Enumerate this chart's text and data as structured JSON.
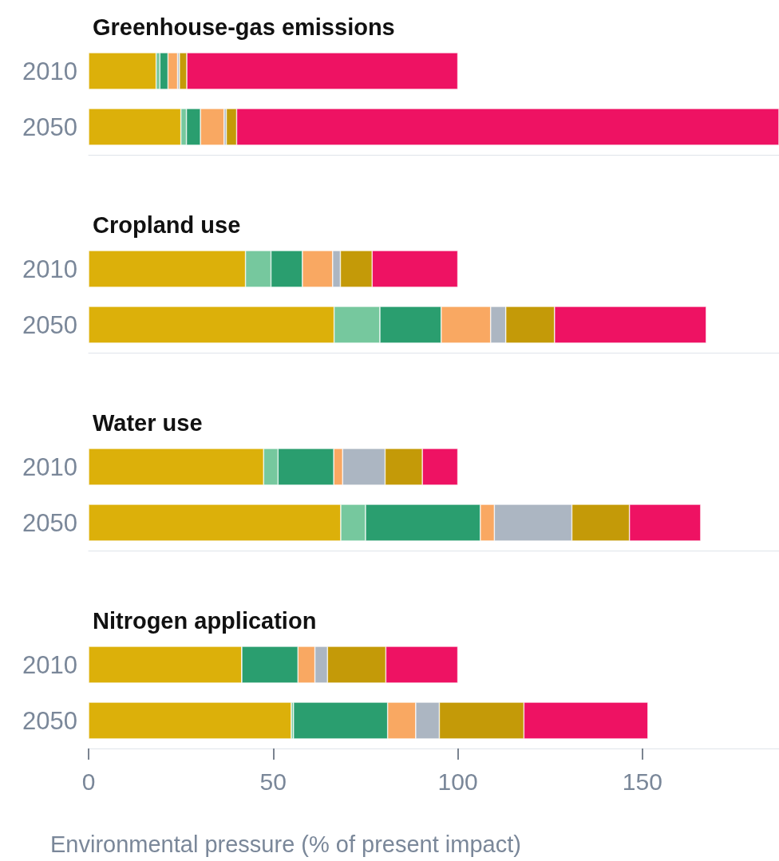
{
  "chart_data": [
    {
      "type": "bar",
      "title": "Greenhouse-gas emissions",
      "orientation": "horizontal",
      "stacked": true,
      "categories": [
        "2010",
        "2050"
      ],
      "xlim": [
        0,
        187
      ],
      "xticks": [
        0,
        50,
        100,
        150
      ],
      "tick_labels": "y",
      "series": [
        {
          "color": "#dcb00a",
          "values": [
            18.3,
            25
          ]
        },
        {
          "color": "#76c89e",
          "values": [
            1,
            1.5
          ]
        },
        {
          "color": "#2a9e6f",
          "values": [
            2.2,
            3.8
          ]
        },
        {
          "color": "#f9a862",
          "values": [
            2.6,
            6.4
          ]
        },
        {
          "color": "#acb6c2",
          "values": [
            0.5,
            0.6
          ]
        },
        {
          "color": "#c49a08",
          "values": [
            2,
            2.8
          ]
        },
        {
          "color": "#ee1263",
          "values": [
            73.4,
            146.9
          ]
        }
      ]
    },
    {
      "type": "bar",
      "title": "Cropland use",
      "orientation": "horizontal",
      "stacked": true,
      "categories": [
        "2010",
        "2050"
      ],
      "xlim": [
        0,
        187
      ],
      "xticks": [
        0,
        50,
        100,
        150
      ],
      "tick_labels": "y",
      "series": [
        {
          "color": "#dcb00a",
          "values": [
            42.5,
            66.5
          ]
        },
        {
          "color": "#76c89e",
          "values": [
            6.9,
            12.4
          ]
        },
        {
          "color": "#2a9e6f",
          "values": [
            8.5,
            16.6
          ]
        },
        {
          "color": "#f9a862",
          "values": [
            8.2,
            13.4
          ]
        },
        {
          "color": "#acb6c2",
          "values": [
            2.1,
            4.1
          ]
        },
        {
          "color": "#c49a08",
          "values": [
            8.6,
            13.2
          ]
        },
        {
          "color": "#ee1263",
          "values": [
            23.2,
            41.1
          ]
        }
      ]
    },
    {
      "type": "bar",
      "title": "Water use",
      "orientation": "horizontal",
      "stacked": true,
      "categories": [
        "2010",
        "2050"
      ],
      "xlim": [
        0,
        187
      ],
      "xticks": [
        0,
        50,
        100,
        150
      ],
      "tick_labels": "y",
      "series": [
        {
          "color": "#dcb00a",
          "values": [
            47.4,
            68.3
          ]
        },
        {
          "color": "#76c89e",
          "values": [
            3.9,
            6.7
          ]
        },
        {
          "color": "#2a9e6f",
          "values": [
            15.1,
            31.1
          ]
        },
        {
          "color": "#f9a862",
          "values": [
            2.4,
            3.8
          ]
        },
        {
          "color": "#acb6c2",
          "values": [
            11.5,
            21
          ]
        },
        {
          "color": "#c49a08",
          "values": [
            10.1,
            15.6
          ]
        },
        {
          "color": "#ee1263",
          "values": [
            9.6,
            19.3
          ]
        }
      ]
    },
    {
      "type": "bar",
      "title": "Nitrogen application",
      "xlabel": "Environmental pressure (% of present impact)",
      "orientation": "horizontal",
      "stacked": true,
      "categories": [
        "2010",
        "2050"
      ],
      "xlim": [
        0,
        187
      ],
      "xticks": [
        0,
        50,
        100,
        150
      ],
      "series": [
        {
          "color": "#dcb00a",
          "values": [
            41.5,
            54.9
          ]
        },
        {
          "color": "#76c89e",
          "values": [
            0,
            0.6
          ]
        },
        {
          "color": "#2a9e6f",
          "values": [
            15.2,
            25.5
          ]
        },
        {
          "color": "#f9a862",
          "values": [
            4.6,
            7.6
          ]
        },
        {
          "color": "#acb6c2",
          "values": [
            3.4,
            6.4
          ]
        },
        {
          "color": "#c49a08",
          "values": [
            15.8,
            22.9
          ]
        },
        {
          "color": "#ee1263",
          "values": [
            19.5,
            33.6
          ]
        }
      ]
    }
  ]
}
